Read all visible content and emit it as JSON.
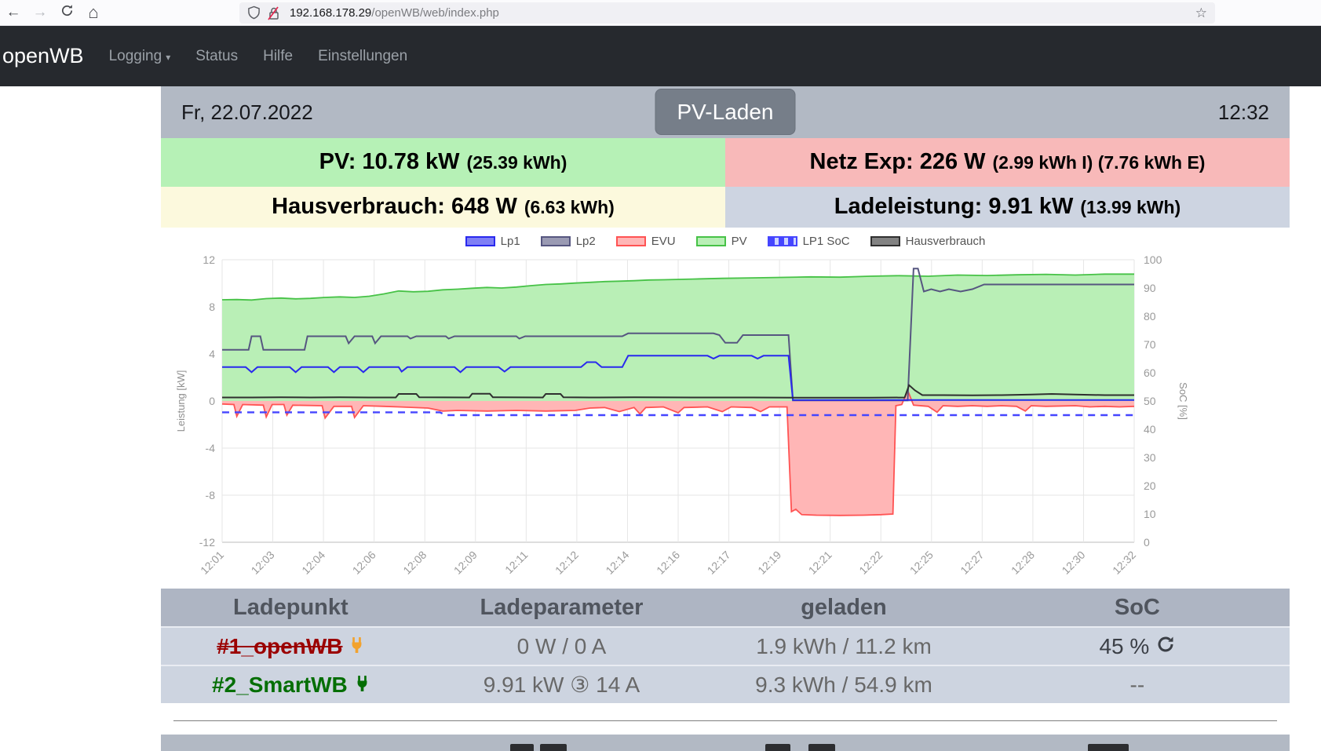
{
  "browser": {
    "url_host": "192.168.178.29",
    "url_path": "/openWB/web/index.php"
  },
  "navbar": {
    "brand": "openWB",
    "items": [
      {
        "label": "Logging"
      },
      {
        "label": "Status"
      },
      {
        "label": "Hilfe"
      },
      {
        "label": "Einstellungen"
      }
    ]
  },
  "header": {
    "date": "Fr, 22.07.2022",
    "mode_button": "PV-Laden",
    "time": "12:32"
  },
  "stats": {
    "pv_main": "PV: 10.78 kW",
    "pv_sub": "(25.39 kWh)",
    "grid_main": "Netz Exp: 226 W",
    "grid_sub": "(2.99 kWh I) (7.76 kWh E)",
    "haus_main": "Hausverbrauch: 648 W",
    "haus_sub": "(6.63 kWh)",
    "lade_main": "Ladeleistung: 9.91 kW",
    "lade_sub": "(13.99 kWh)"
  },
  "chart_data": {
    "type": "line",
    "ylabel": "Leistung [kW]",
    "y2label": "SoC [%]",
    "x_range": [
      1,
      32
    ],
    "y_range": [
      -12,
      12
    ],
    "y2_range": [
      0,
      100
    ],
    "y_ticks": [
      12,
      8,
      4,
      0,
      -4,
      -8,
      -12
    ],
    "y2_ticks": [
      100,
      90,
      80,
      70,
      60,
      50,
      40,
      30,
      20,
      10,
      0
    ],
    "x_ticks": [
      "12:01",
      "12:03",
      "12:04",
      "12:06",
      "12:08",
      "12:09",
      "12:11",
      "12:12",
      "12:14",
      "12:16",
      "12:17",
      "12:19",
      "12:21",
      "12:22",
      "12:25",
      "12:27",
      "12:28",
      "12:30",
      "12:32"
    ],
    "grid": true,
    "legend_position": "top-center",
    "series": [
      {
        "name": "Lp1",
        "type": "line",
        "axis": "kW",
        "color": "#2929ee",
        "points": [
          [
            1,
            2.88
          ],
          [
            1.8,
            2.88
          ],
          [
            2,
            2.45
          ],
          [
            2.2,
            2.88
          ],
          [
            3.3,
            2.88
          ],
          [
            3.5,
            2.45
          ],
          [
            3.7,
            2.88
          ],
          [
            4.6,
            2.88
          ],
          [
            4.8,
            2.45
          ],
          [
            5,
            2.88
          ],
          [
            5.6,
            2.88
          ],
          [
            5.8,
            2.45
          ],
          [
            6,
            2.88
          ],
          [
            7,
            2.88
          ],
          [
            7.1,
            2.5
          ],
          [
            7.3,
            2.88
          ],
          [
            8.9,
            2.88
          ],
          [
            9.1,
            2.45
          ],
          [
            9.3,
            2.88
          ],
          [
            10.4,
            2.88
          ],
          [
            10.6,
            2.5
          ],
          [
            10.8,
            2.88
          ],
          [
            13.2,
            2.88
          ],
          [
            13.4,
            3.3
          ],
          [
            13.7,
            3.3
          ],
          [
            13.9,
            2.88
          ],
          [
            14.6,
            2.88
          ],
          [
            14.8,
            3.85
          ],
          [
            17.5,
            3.85
          ],
          [
            17.7,
            3.6
          ],
          [
            17.9,
            3.85
          ],
          [
            19,
            3.85
          ],
          [
            19.2,
            3.6
          ],
          [
            19.4,
            3.85
          ],
          [
            20.25,
            3.85
          ],
          [
            20.4,
            0.08
          ],
          [
            32,
            0.08
          ]
        ]
      },
      {
        "name": "Lp2",
        "type": "line",
        "axis": "kW",
        "color": "#565680",
        "points": [
          [
            1,
            4.35
          ],
          [
            1.9,
            4.35
          ],
          [
            2,
            5.5
          ],
          [
            2.3,
            5.5
          ],
          [
            2.4,
            4.35
          ],
          [
            3.8,
            4.35
          ],
          [
            3.9,
            5.5
          ],
          [
            5.2,
            5.5
          ],
          [
            5.3,
            4.9
          ],
          [
            5.5,
            5.5
          ],
          [
            6.1,
            5.5
          ],
          [
            6.2,
            4.9
          ],
          [
            6.4,
            5.5
          ],
          [
            7.3,
            5.5
          ],
          [
            7.4,
            5.3
          ],
          [
            7.6,
            5.5
          ],
          [
            8.6,
            5.5
          ],
          [
            8.7,
            5.3
          ],
          [
            8.9,
            5.5
          ],
          [
            11,
            5.5
          ],
          [
            11.1,
            5.3
          ],
          [
            11.3,
            5.5
          ],
          [
            14.6,
            5.5
          ],
          [
            14.8,
            5.75
          ],
          [
            17.7,
            5.75
          ],
          [
            17.9,
            5.6
          ],
          [
            18.1,
            4.95
          ],
          [
            18.5,
            4.95
          ],
          [
            18.7,
            5.6
          ],
          [
            20.25,
            5.6
          ],
          [
            20.4,
            0.05
          ],
          [
            24.3,
            0.05
          ],
          [
            24.5,
            11.25
          ],
          [
            24.65,
            11.25
          ],
          [
            24.85,
            9.3
          ],
          [
            25.1,
            9.5
          ],
          [
            25.4,
            9.3
          ],
          [
            25.7,
            9.5
          ],
          [
            26.1,
            9.3
          ],
          [
            26.5,
            9.5
          ],
          [
            26.9,
            9.9
          ],
          [
            32,
            9.9
          ]
        ]
      },
      {
        "name": "EVU",
        "type": "area",
        "axis": "kW",
        "color": "#ff5353",
        "fill": "#ffb6b6",
        "points": [
          [
            1,
            -0.25
          ],
          [
            1.4,
            -0.3
          ],
          [
            1.5,
            -1.3
          ],
          [
            1.7,
            -0.3
          ],
          [
            2.4,
            -0.35
          ],
          [
            2.5,
            -1.35
          ],
          [
            2.7,
            -0.3
          ],
          [
            3.1,
            -0.3
          ],
          [
            3.2,
            -1.2
          ],
          [
            3.4,
            -0.35
          ],
          [
            4.4,
            -0.4
          ],
          [
            4.5,
            -1.45
          ],
          [
            4.8,
            -0.45
          ],
          [
            5.4,
            -0.45
          ],
          [
            5.5,
            -1.4
          ],
          [
            5.8,
            -0.4
          ],
          [
            6.5,
            -0.45
          ],
          [
            7,
            -0.5
          ],
          [
            8,
            -0.6
          ],
          [
            8.5,
            -0.85
          ],
          [
            9,
            -0.8
          ],
          [
            10,
            -0.85
          ],
          [
            11,
            -0.8
          ],
          [
            12,
            -0.85
          ],
          [
            13,
            -0.8
          ],
          [
            13.5,
            -0.6
          ],
          [
            14,
            -0.55
          ],
          [
            14.5,
            -0.9
          ],
          [
            15,
            -0.55
          ],
          [
            15.2,
            -1.1
          ],
          [
            15.4,
            -0.55
          ],
          [
            16,
            -0.5
          ],
          [
            16.5,
            -1.0
          ],
          [
            16.7,
            -0.55
          ],
          [
            17.5,
            -0.5
          ],
          [
            18,
            -0.9
          ],
          [
            18.3,
            -0.5
          ],
          [
            19,
            -0.55
          ],
          [
            19.3,
            -0.9
          ],
          [
            19.6,
            -0.5
          ],
          [
            20.2,
            -0.5
          ],
          [
            20.35,
            -9.4
          ],
          [
            20.5,
            -9.2
          ],
          [
            20.7,
            -9.65
          ],
          [
            21.2,
            -9.7
          ],
          [
            22,
            -9.72
          ],
          [
            22.8,
            -9.7
          ],
          [
            23.4,
            -9.65
          ],
          [
            23.8,
            -9.6
          ],
          [
            23.9,
            -0.4
          ],
          [
            24.1,
            -0.3
          ],
          [
            24.3,
            0.9
          ],
          [
            24.5,
            -0.35
          ],
          [
            25,
            -0.45
          ],
          [
            25.3,
            -0.95
          ],
          [
            25.5,
            -0.4
          ],
          [
            26,
            -0.45
          ],
          [
            26.5,
            -0.4
          ],
          [
            27,
            -0.45
          ],
          [
            27.5,
            -0.4
          ],
          [
            28,
            -0.45
          ],
          [
            28.3,
            -0.85
          ],
          [
            28.5,
            -0.4
          ],
          [
            29,
            -0.45
          ],
          [
            30,
            -0.4
          ],
          [
            30.5,
            -0.5
          ],
          [
            31,
            -0.45
          ],
          [
            31.5,
            -0.5
          ],
          [
            32,
            -0.45
          ]
        ]
      },
      {
        "name": "PV",
        "type": "area",
        "axis": "kW",
        "color": "#47c247",
        "fill": "#b9efb6",
        "points": [
          [
            1,
            8.6
          ],
          [
            1.5,
            8.62
          ],
          [
            2,
            8.58
          ],
          [
            2.5,
            8.7
          ],
          [
            3,
            8.75
          ],
          [
            3.5,
            8.68
          ],
          [
            4,
            8.72
          ],
          [
            4.5,
            8.8
          ],
          [
            5,
            8.85
          ],
          [
            5.5,
            8.8
          ],
          [
            6,
            8.9
          ],
          [
            6.5,
            9.1
          ],
          [
            7,
            9.35
          ],
          [
            7.5,
            9.28
          ],
          [
            8,
            9.32
          ],
          [
            8.5,
            9.45
          ],
          [
            9,
            9.5
          ],
          [
            9.5,
            9.58
          ],
          [
            10,
            9.65
          ],
          [
            10.5,
            9.6
          ],
          [
            11,
            9.68
          ],
          [
            11.5,
            9.8
          ],
          [
            12,
            9.9
          ],
          [
            12.5,
            9.95
          ],
          [
            13,
            10.02
          ],
          [
            13.5,
            10.08
          ],
          [
            14,
            10.15
          ],
          [
            14.5,
            10.18
          ],
          [
            15,
            10.22
          ],
          [
            15.5,
            10.28
          ],
          [
            16,
            10.3
          ],
          [
            17,
            10.36
          ],
          [
            18,
            10.42
          ],
          [
            19,
            10.46
          ],
          [
            20,
            10.5
          ],
          [
            21,
            10.55
          ],
          [
            22,
            10.52
          ],
          [
            23,
            10.6
          ],
          [
            24,
            10.65
          ],
          [
            25,
            10.6
          ],
          [
            26,
            10.7
          ],
          [
            27,
            10.66
          ],
          [
            28,
            10.72
          ],
          [
            29,
            10.76
          ],
          [
            30,
            10.7
          ],
          [
            31,
            10.78
          ],
          [
            32,
            10.78
          ]
        ]
      },
      {
        "name": "LP1 SoC",
        "type": "line",
        "axis": "SoC",
        "color": "#4545ff",
        "dashed": true,
        "points": [
          [
            1,
            46
          ],
          [
            8.4,
            46
          ],
          [
            8.6,
            45
          ],
          [
            32,
            45
          ]
        ]
      },
      {
        "name": "Hausverbrauch",
        "type": "line",
        "axis": "kW",
        "color": "#2f2f2f",
        "points": [
          [
            1,
            0.3
          ],
          [
            2,
            0.3
          ],
          [
            3,
            0.32
          ],
          [
            4,
            0.3
          ],
          [
            5,
            0.32
          ],
          [
            6,
            0.3
          ],
          [
            6.9,
            0.3
          ],
          [
            7,
            0.6
          ],
          [
            7.6,
            0.6
          ],
          [
            7.7,
            0.32
          ],
          [
            9.4,
            0.3
          ],
          [
            9.5,
            0.62
          ],
          [
            10.1,
            0.62
          ],
          [
            10.2,
            0.32
          ],
          [
            11.9,
            0.3
          ],
          [
            12,
            0.6
          ],
          [
            12.5,
            0.6
          ],
          [
            12.6,
            0.32
          ],
          [
            13.5,
            0.3
          ],
          [
            15,
            0.32
          ],
          [
            17,
            0.3
          ],
          [
            19,
            0.3
          ],
          [
            21,
            0.28
          ],
          [
            23,
            0.28
          ],
          [
            24.2,
            0.3
          ],
          [
            24.35,
            1.35
          ],
          [
            24.55,
            0.9
          ],
          [
            24.8,
            0.5
          ],
          [
            25.5,
            0.5
          ],
          [
            26.5,
            0.48
          ],
          [
            27.5,
            0.5
          ],
          [
            28.5,
            0.55
          ],
          [
            29.2,
            0.6
          ],
          [
            30,
            0.55
          ],
          [
            31,
            0.5
          ],
          [
            32,
            0.5
          ]
        ]
      }
    ]
  },
  "table": {
    "headers": [
      "Ladepunkt",
      "Ladeparameter",
      "geladen",
      "SoC"
    ],
    "rows": [
      {
        "name": "#1_openWB",
        "name_color": "#9b0000",
        "strikethrough": true,
        "plug_color": "#f2a22e",
        "params": "0 W / 0 A",
        "charged": "1.9 kWh / 11.2 km",
        "soc": "45 %",
        "has_refresh": true
      },
      {
        "name": "#2_SmartWB",
        "name_color": "#046e04",
        "strikethrough": false,
        "plug_color": "#046e04",
        "params": "9.91 kW ③ 14 A",
        "charged": "9.3 kWh / 54.9 km",
        "soc": "--",
        "has_refresh": false
      }
    ]
  },
  "colors": {
    "accent_green": "#b6f1b6",
    "accent_red": "#f8b9b9",
    "accent_yellow": "#fcf9dd",
    "accent_bluegray": "#cdd4e1",
    "band_gray": "#b2b9c4",
    "navbar": "#26292e"
  }
}
